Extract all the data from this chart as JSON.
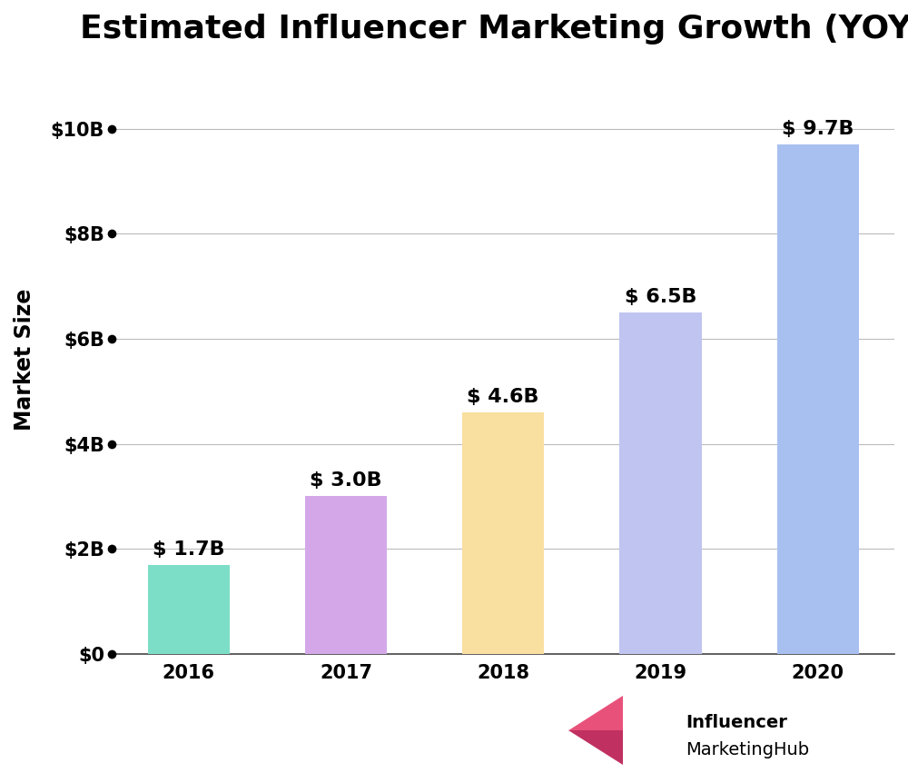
{
  "title": "Estimated Influencer Marketing Growth (YOY)",
  "ylabel": "Market Size",
  "categories": [
    "2016",
    "2017",
    "2018",
    "2019",
    "2020"
  ],
  "values": [
    1.7,
    3.0,
    4.6,
    6.5,
    9.7
  ],
  "bar_colors": [
    "#7DDEC8",
    "#D4A8E8",
    "#F9DFA0",
    "#C0C4F0",
    "#A8C0F0"
  ],
  "bar_labels": [
    "$ 1.7B",
    "$ 3.0B",
    "$ 4.6B",
    "$ 6.5B",
    "$ 9.7B"
  ],
  "yticks": [
    0,
    2,
    4,
    6,
    8,
    10
  ],
  "ytick_labels": [
    "$0",
    "$2B",
    "$4B",
    "$6B",
    "$8B",
    "$10B"
  ],
  "ylim": [
    0,
    11.2
  ],
  "background_color": "#ffffff",
  "title_fontsize": 26,
  "axis_label_fontsize": 17,
  "tick_fontsize": 15,
  "bar_label_fontsize": 16,
  "grid_color": "#bbbbbb",
  "logo_text_line1": "Influencer",
  "logo_text_line2": "MarketingHub",
  "logo_color_light": "#E8527A",
  "logo_color_dark": "#C03060"
}
